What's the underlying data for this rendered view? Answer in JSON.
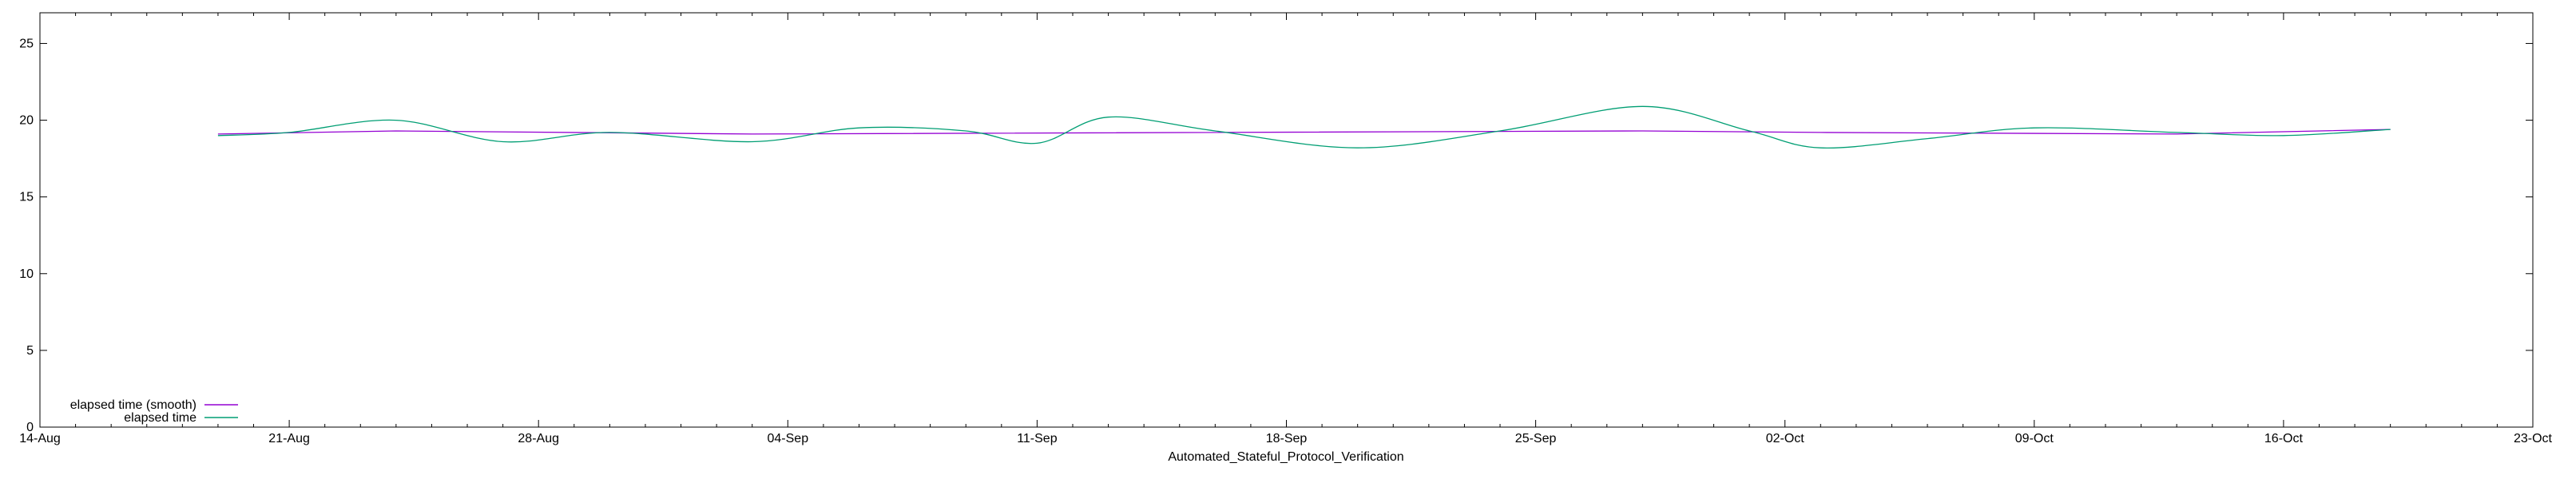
{
  "chart_data": {
    "type": "line",
    "title": "",
    "xlabel": "Automated_Stateful_Protocol_Verification",
    "ylabel": "",
    "x_type": "date",
    "xlim": [
      "2024-08-14",
      "2024-10-23"
    ],
    "ylim": [
      0,
      27
    ],
    "x_ticks": [
      {
        "date": "2024-08-14",
        "label": "14-Aug"
      },
      {
        "date": "2024-08-21",
        "label": "21-Aug"
      },
      {
        "date": "2024-08-28",
        "label": "28-Aug"
      },
      {
        "date": "2024-09-04",
        "label": "04-Sep"
      },
      {
        "date": "2024-09-11",
        "label": "11-Sep"
      },
      {
        "date": "2024-09-18",
        "label": "18-Sep"
      },
      {
        "date": "2024-09-25",
        "label": "25-Sep"
      },
      {
        "date": "2024-10-02",
        "label": "02-Oct"
      },
      {
        "date": "2024-10-09",
        "label": "09-Oct"
      },
      {
        "date": "2024-10-16",
        "label": "16-Oct"
      },
      {
        "date": "2024-10-23",
        "label": "23-Oct"
      }
    ],
    "y_ticks": [
      0,
      5,
      10,
      15,
      20,
      25
    ],
    "grid": false,
    "legend_position": "bottom-left",
    "series": [
      {
        "name": "elapsed time (smooth)",
        "color": "#9400d3",
        "x": [
          "2024-08-19",
          "2024-08-24",
          "2024-09-03",
          "2024-09-28",
          "2024-10-03",
          "2024-10-13",
          "2024-10-19"
        ],
        "y": [
          19.1,
          19.3,
          19.1,
          19.3,
          19.2,
          19.1,
          19.4
        ]
      },
      {
        "name": "elapsed time",
        "color": "#009e73",
        "x": [
          "2024-08-19",
          "2024-08-21",
          "2024-08-24",
          "2024-08-27",
          "2024-08-30",
          "2024-09-03",
          "2024-09-06",
          "2024-09-09",
          "2024-09-11",
          "2024-09-13",
          "2024-09-16",
          "2024-09-20",
          "2024-09-24",
          "2024-09-28",
          "2024-10-01",
          "2024-10-03",
          "2024-10-06",
          "2024-10-09",
          "2024-10-13",
          "2024-10-16",
          "2024-10-19"
        ],
        "y": [
          19.0,
          19.2,
          20.0,
          18.6,
          19.2,
          18.6,
          19.5,
          19.3,
          18.5,
          20.2,
          19.3,
          18.2,
          19.3,
          20.9,
          19.3,
          18.2,
          18.8,
          19.5,
          19.2,
          19.0,
          19.4
        ]
      }
    ]
  }
}
